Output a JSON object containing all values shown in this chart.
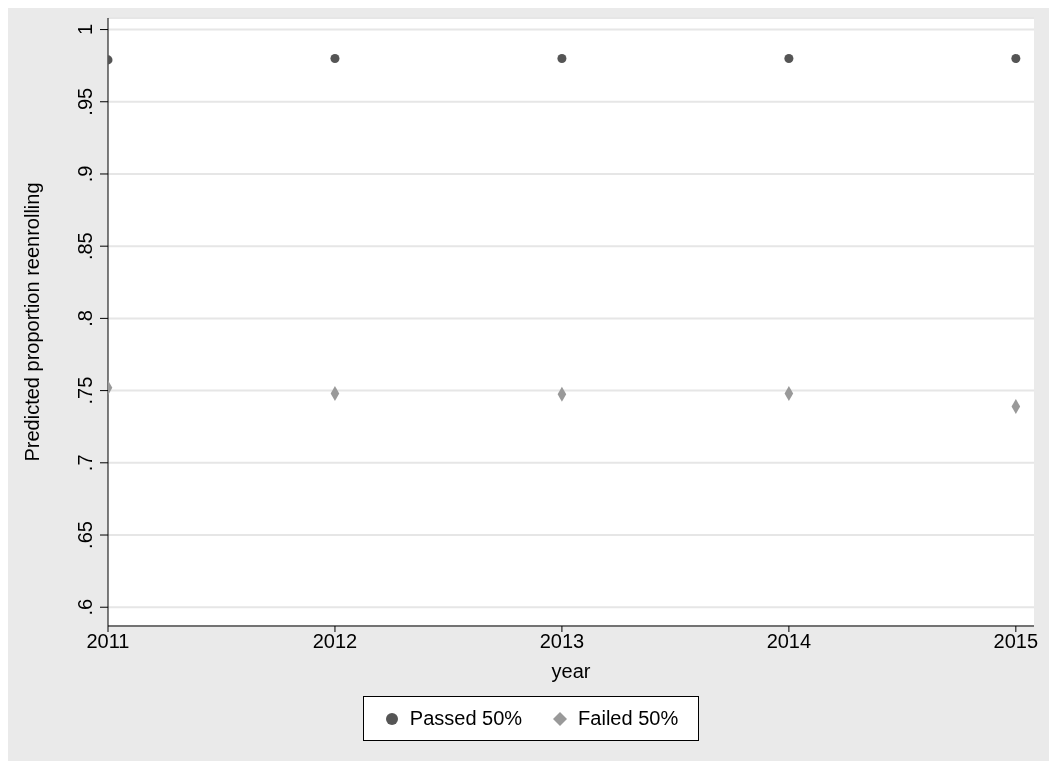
{
  "chart_data": {
    "type": "scatter",
    "xlabel": "year",
    "ylabel": "Predicted proportion reenrolling",
    "x": [
      2011,
      2012,
      2013,
      2014,
      2015
    ],
    "series": [
      {
        "name": "Passed 50%",
        "color": "#555555",
        "marker": "circle",
        "values": [
          0.979,
          0.98,
          0.98,
          0.98,
          0.98
        ]
      },
      {
        "name": "Failed 50%",
        "color": "#999999",
        "marker": "diamond",
        "values": [
          0.752,
          0.748,
          0.7475,
          0.748,
          0.739
        ]
      }
    ],
    "xlim": [
      2011,
      2015.08
    ],
    "xticks": [
      2011,
      2012,
      2013,
      2014,
      2015
    ],
    "ylim": [
      0.587,
      1.008
    ],
    "yticks": [
      {
        "value": 0.6,
        "label": ".6"
      },
      {
        "value": 0.65,
        "label": ".65"
      },
      {
        "value": 0.7,
        "label": ".7"
      },
      {
        "value": 0.75,
        "label": ".75"
      },
      {
        "value": 0.8,
        "label": ".8"
      },
      {
        "value": 0.85,
        "label": ".85"
      },
      {
        "value": 0.9,
        "label": ".9"
      },
      {
        "value": 0.95,
        "label": ".95"
      },
      1
    ],
    "grid": "y",
    "legend": "bottom"
  }
}
